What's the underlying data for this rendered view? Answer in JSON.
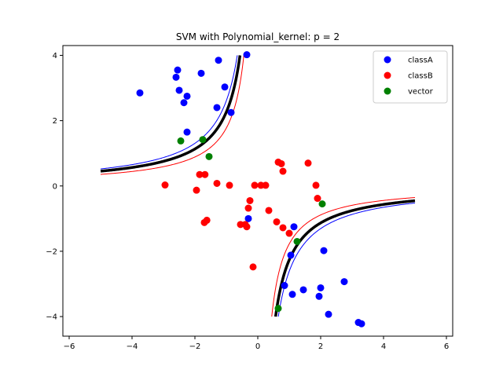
{
  "chart_data": {
    "type": "scatter",
    "title": "SVM with Polynomial_kernel: p = 2",
    "xlabel": "",
    "ylabel": "",
    "xlim": [
      -6.2,
      6.2
    ],
    "ylim": [
      -4.6,
      4.3
    ],
    "xticks": [
      -6,
      -4,
      -2,
      0,
      2,
      4,
      6
    ],
    "yticks": [
      -4,
      -2,
      0,
      2,
      4
    ],
    "grid": false,
    "legend_position": "top-right",
    "series": [
      {
        "name": "classA",
        "color": "#0000ff",
        "points": [
          [
            -3.75,
            2.85
          ],
          [
            -2.55,
            3.55
          ],
          [
            -2.6,
            3.33
          ],
          [
            -2.5,
            2.93
          ],
          [
            -2.35,
            2.55
          ],
          [
            -2.25,
            2.75
          ],
          [
            -1.8,
            3.45
          ],
          [
            -1.25,
            3.85
          ],
          [
            -0.35,
            4.02
          ],
          [
            -1.05,
            3.03
          ],
          [
            -1.3,
            2.4
          ],
          [
            -0.85,
            2.25
          ],
          [
            -2.25,
            1.65
          ],
          [
            -0.3,
            -1.0
          ],
          [
            1.15,
            -1.25
          ],
          [
            1.05,
            -2.12
          ],
          [
            2.1,
            -1.98
          ],
          [
            0.85,
            -3.05
          ],
          [
            1.1,
            -3.32
          ],
          [
            1.45,
            -3.18
          ],
          [
            2.0,
            -3.12
          ],
          [
            1.95,
            -3.38
          ],
          [
            2.75,
            -2.93
          ],
          [
            2.25,
            -3.93
          ],
          [
            3.2,
            -4.18
          ],
          [
            3.3,
            -4.22
          ]
        ]
      },
      {
        "name": "classB",
        "color": "#ff0000",
        "points": [
          [
            -2.95,
            0.03
          ],
          [
            -1.95,
            -0.13
          ],
          [
            -1.85,
            0.35
          ],
          [
            -1.68,
            0.35
          ],
          [
            -1.3,
            0.08
          ],
          [
            -0.9,
            0.02
          ],
          [
            -0.1,
            0.02
          ],
          [
            0.1,
            0.02
          ],
          [
            0.25,
            0.02
          ],
          [
            0.65,
            0.73
          ],
          [
            0.75,
            0.68
          ],
          [
            0.8,
            0.45
          ],
          [
            1.6,
            0.7
          ],
          [
            1.85,
            0.02
          ],
          [
            1.9,
            -0.38
          ],
          [
            -1.7,
            -1.12
          ],
          [
            -1.62,
            -1.05
          ],
          [
            -0.55,
            -1.18
          ],
          [
            -0.4,
            -1.18
          ],
          [
            -0.35,
            -1.25
          ],
          [
            -0.3,
            -0.68
          ],
          [
            -0.25,
            -0.45
          ],
          [
            0.35,
            -0.75
          ],
          [
            0.6,
            -1.1
          ],
          [
            0.8,
            -1.28
          ],
          [
            1.0,
            -1.45
          ],
          [
            -0.15,
            -2.48
          ]
        ]
      },
      {
        "name": "vector",
        "color": "#008000",
        "points": [
          [
            -2.45,
            1.38
          ],
          [
            -1.75,
            1.42
          ],
          [
            -1.55,
            0.9
          ],
          [
            2.05,
            -0.55
          ],
          [
            1.25,
            -1.7
          ],
          [
            0.65,
            -3.75
          ]
        ]
      }
    ],
    "decision_boundary": {
      "color": "#000000",
      "level": 0
    },
    "margin_lines": [
      {
        "color": "#0000ff",
        "level": 1
      },
      {
        "color": "#ff0000",
        "level": -1
      }
    ]
  }
}
